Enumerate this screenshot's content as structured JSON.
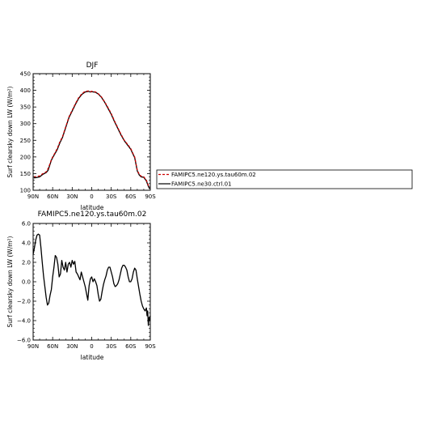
{
  "chart_data": [
    {
      "type": "line",
      "title": "DJF",
      "xlabel": "latitude",
      "ylabel": "Surf clearsky down LW (W/m²)",
      "ylim": [
        100,
        450
      ],
      "yticks": [
        "450",
        "400",
        "350",
        "300",
        "250",
        "200",
        "150",
        "100"
      ],
      "xticks": [
        "90N",
        "60N",
        "30N",
        "0",
        "30S",
        "60S",
        "90S"
      ],
      "xlim": [
        90,
        -90
      ],
      "series": [
        {
          "name": "FAMIPC5.ne120.ys.tau60m.02",
          "color": "#cc0000",
          "style": "dashed",
          "x": [
            89,
            85,
            80,
            75,
            70,
            67,
            64,
            62,
            60,
            57,
            53,
            49,
            45,
            40,
            35,
            30,
            25,
            20,
            15,
            10,
            5,
            2,
            0,
            -3,
            -6,
            -10,
            -15,
            -20,
            -25,
            -30,
            -35,
            -40,
            -45,
            -50,
            -55,
            -60,
            -63,
            -66,
            -68,
            -70,
            -73,
            -76,
            -80,
            -84,
            -87,
            -89
          ],
          "y": [
            140,
            141,
            143,
            150,
            155,
            165,
            180,
            192,
            200,
            210,
            225,
            245,
            260,
            290,
            320,
            340,
            360,
            378,
            390,
            397,
            398,
            396,
            397,
            396,
            395,
            390,
            380,
            365,
            348,
            330,
            308,
            288,
            268,
            250,
            238,
            225,
            212,
            200,
            180,
            160,
            148,
            142,
            140,
            130,
            115,
            108
          ]
        },
        {
          "name": "FAMIPC5.ne30.ctrl.01",
          "color": "#000000",
          "style": "solid",
          "x": [
            89,
            85,
            80,
            75,
            70,
            67,
            64,
            62,
            60,
            57,
            53,
            49,
            45,
            40,
            35,
            30,
            25,
            20,
            15,
            10,
            5,
            2,
            0,
            -3,
            -6,
            -10,
            -15,
            -20,
            -25,
            -30,
            -35,
            -40,
            -45,
            -50,
            -55,
            -60,
            -63,
            -66,
            -68,
            -70,
            -73,
            -76,
            -80,
            -84,
            -87,
            -89
          ],
          "y": [
            137,
            138,
            140,
            148,
            153,
            160,
            178,
            190,
            198,
            208,
            222,
            242,
            258,
            288,
            318,
            338,
            358,
            376,
            388,
            395,
            397,
            395,
            396,
            395,
            394,
            389,
            379,
            364,
            346,
            328,
            306,
            286,
            266,
            249,
            236,
            223,
            210,
            198,
            178,
            158,
            146,
            140,
            139,
            128,
            112,
            104
          ]
        }
      ]
    },
    {
      "type": "line",
      "title": "FAMIPC5.ne120.ys.tau60m.02",
      "xlabel": "latitude",
      "ylabel": "Surf clearsky down LW (W/m²)",
      "ylim": [
        -6,
        6
      ],
      "yticks": [
        "6.0",
        "4.0",
        "2.0",
        "0.0",
        "−2.0",
        "−4.0",
        "−6.0"
      ],
      "xticks": [
        "90N",
        "60N",
        "30N",
        "0",
        "30S",
        "60S",
        "90S"
      ],
      "xlim": [
        90,
        -90
      ],
      "series": [
        {
          "color": "#000000",
          "style": "solid",
          "x": [
            90,
            88,
            86,
            84,
            82,
            80,
            78,
            76,
            74,
            72,
            70,
            68,
            66,
            64,
            62,
            60,
            58,
            56,
            54,
            52,
            50,
            48,
            46,
            44,
            42,
            40,
            38,
            36,
            34,
            32,
            30,
            28,
            26,
            24,
            22,
            20,
            18,
            16,
            14,
            12,
            10,
            8,
            6,
            4,
            2,
            0,
            -2,
            -4,
            -6,
            -8,
            -10,
            -12,
            -14,
            -16,
            -18,
            -20,
            -22,
            -24,
            -26,
            -28,
            -30,
            -32,
            -34,
            -36,
            -38,
            -40,
            -42,
            -44,
            -46,
            -48,
            -50,
            -52,
            -54,
            -56,
            -58,
            -60,
            -62,
            -64,
            -66,
            -68,
            -70,
            -72,
            -74,
            -76,
            -78,
            -80,
            -82,
            -84,
            -85,
            -86,
            -87,
            -88,
            -89,
            -90
          ],
          "y": [
            2.8,
            3.5,
            4.3,
            4.8,
            4.9,
            4.8,
            3.5,
            2.0,
            0.6,
            -0.5,
            -1.6,
            -2.4,
            -2.2,
            -1.4,
            -0.8,
            0.5,
            1.5,
            2.7,
            2.5,
            1.8,
            0.5,
            0.8,
            2.2,
            1.5,
            1.2,
            2.0,
            1.0,
            1.8,
            2.0,
            1.5,
            2.2,
            1.8,
            2.1,
            1.0,
            0.8,
            0.5,
            0.2,
            1.0,
            0.5,
            0.0,
            -0.5,
            -1.2,
            -1.9,
            -0.4,
            0.3,
            0.5,
            0.0,
            0.3,
            0.0,
            -0.4,
            -1.3,
            -2.0,
            -1.8,
            -1.0,
            -0.3,
            0.2,
            0.6,
            1.2,
            1.5,
            1.5,
            1.0,
            0.5,
            -0.2,
            -0.5,
            -0.4,
            -0.2,
            0.2,
            0.8,
            1.4,
            1.7,
            1.7,
            1.5,
            1.2,
            0.5,
            0.0,
            0.0,
            0.3,
            1.0,
            1.4,
            1.2,
            0.3,
            -0.5,
            -1.3,
            -2.0,
            -2.5,
            -2.8,
            -3.0,
            -2.7,
            -3.5,
            -3.0,
            -4.5,
            -3.7,
            -4.0,
            -3.5
          ]
        }
      ]
    }
  ]
}
